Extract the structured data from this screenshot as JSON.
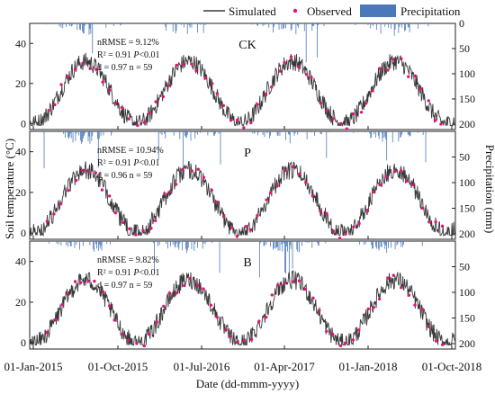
{
  "chart_data": [
    {
      "type": "line",
      "panel_label": "CK",
      "stats": {
        "line1": "nRMSE = 9.12%",
        "line2_r2": "R² = 0.91",
        "line2_p": "P",
        "line2_p_rest": "<0.01",
        "line3": "d = 0.97   n = 59"
      },
      "ylim_temperature": [
        -3,
        50
      ],
      "yticks_temperature": [
        0,
        20,
        40
      ],
      "ylim_precipitation_reversed": [
        0,
        200
      ],
      "yticks_precipitation": [
        0,
        50,
        100,
        150,
        200
      ]
    },
    {
      "type": "line",
      "panel_label": "P",
      "stats": {
        "line1": "nRMSE = 10.94%",
        "line2_r2": "R² = 0.91",
        "line2_p": "P",
        "line2_p_rest": "<0.01",
        "line3": "d = 0.96   n = 59"
      },
      "ylim_temperature": [
        -3,
        50
      ],
      "yticks_temperature": [
        0,
        20,
        40
      ],
      "ylim_precipitation_reversed": [
        0,
        200
      ],
      "yticks_precipitation": [
        50,
        100,
        150,
        200
      ]
    },
    {
      "type": "line",
      "panel_label": "B",
      "stats": {
        "line1": "nRMSE = 9.82%",
        "line2_r2": "R² = 0.91",
        "line2_p": "P",
        "line2_p_rest": "<0.01",
        "line3": "d = 0.97   n = 59"
      },
      "ylim_temperature": [
        -3,
        50
      ],
      "yticks_temperature": [
        0,
        20,
        40
      ],
      "ylim_precipitation_reversed": [
        0,
        200
      ],
      "yticks_precipitation": [
        50,
        100,
        150,
        200
      ]
    }
  ],
  "legend": {
    "simulated": "Simulated",
    "observed": "Observed",
    "precipitation": "Precipitation"
  },
  "axes": {
    "xlabel": "Date (dd-mmm-yyyy)",
    "ylabel_left": "Soil temperature (°C)",
    "ylabel_right": "Precipitation (mm)",
    "xtick_labels": [
      "01-Jan-2015",
      "01-Oct-2015",
      "01-Jul-2016",
      "01-Apr-2017",
      "01-Jan-2018",
      "01-Oct-2018"
    ]
  },
  "colors": {
    "simulated": "#3a3a3a",
    "observed": "#e0147a",
    "precipitation": "#4a78b8"
  }
}
